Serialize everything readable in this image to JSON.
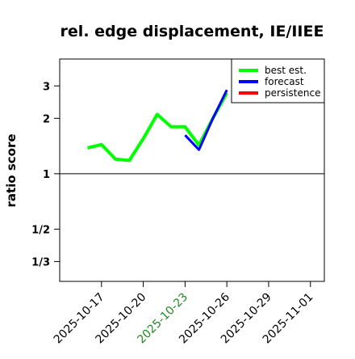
{
  "chart_data": {
    "type": "line",
    "title": "rel. edge displacement, IE/IIEE",
    "xlabel": "",
    "ylabel": "ratio score",
    "x_ticks": [
      "2025-10-17",
      "2025-10-20",
      "2025-10-23",
      "2025-10-26",
      "2025-10-29",
      "2025-11-01"
    ],
    "highlight_tick": "2025-10-23",
    "highlight_color": "#228b22",
    "y_ticks": [
      {
        "label": "1/3",
        "value": 0.3333
      },
      {
        "label": "1/2",
        "value": 0.5
      },
      {
        "label": "1",
        "value": 1
      },
      {
        "label": "2",
        "value": 2
      },
      {
        "label": "3",
        "value": 3
      }
    ],
    "y_scale": "log",
    "xlim": [
      "2025-10-14",
      "2025-11-02"
    ],
    "ylim": [
      0.26,
      4.2
    ],
    "reference_line": 1,
    "legend_position": "top-right",
    "series": [
      {
        "name": "best est.",
        "color": "#00ff00",
        "x": [
          "2025-10-16",
          "2025-10-17",
          "2025-10-18",
          "2025-10-19",
          "2025-10-20",
          "2025-10-21",
          "2025-10-22",
          "2025-10-23",
          "2025-10-24",
          "2025-10-25",
          "2025-10-26"
        ],
        "y": [
          1.38,
          1.44,
          1.2,
          1.18,
          1.55,
          2.1,
          1.8,
          1.8,
          1.43,
          2.0,
          2.75
        ]
      },
      {
        "name": "forecast",
        "color": "#0000ff",
        "x": [
          "2025-10-23",
          "2025-10-24",
          "2025-10-25",
          "2025-10-26"
        ],
        "y": [
          1.62,
          1.35,
          2.0,
          2.85
        ]
      },
      {
        "name": "persistence",
        "color": "#ff0000",
        "x": [],
        "y": []
      }
    ]
  }
}
